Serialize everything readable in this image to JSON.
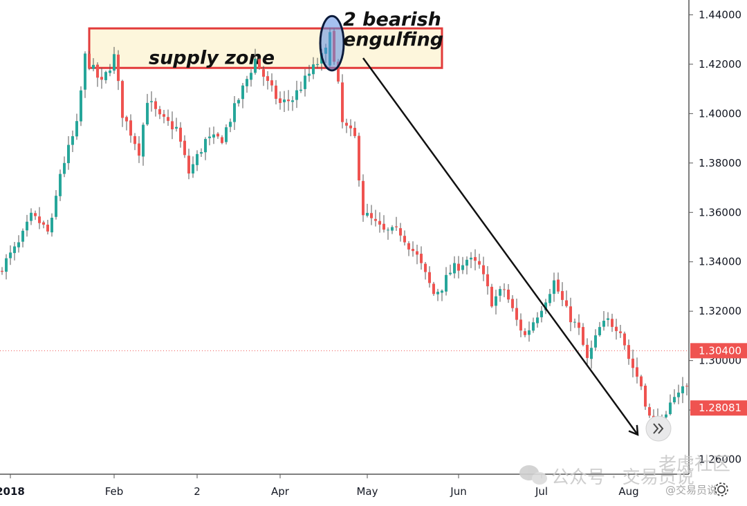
{
  "chart_data": {
    "type": "candlestick",
    "title": "",
    "y_axis": {
      "ylim": [
        1.254,
        1.446
      ],
      "ticks": [
        "1.44000",
        "1.42000",
        "1.40000",
        "1.38000",
        "1.36000",
        "1.34000",
        "1.32000",
        "1.30000",
        "1.28000",
        "1.26000"
      ],
      "tick_values": [
        1.44,
        1.42,
        1.4,
        1.38,
        1.36,
        1.34,
        1.32,
        1.3,
        1.28,
        1.26
      ],
      "position": "right",
      "price_badges": [
        {
          "label": "1.30400",
          "value": 1.304,
          "color": "#ef5350"
        },
        {
          "label": "1.28081",
          "value": 1.28081,
          "color": "#ef5350"
        }
      ]
    },
    "x_axis": {
      "labels": [
        {
          "text": "2018",
          "index": 2,
          "bold": true
        },
        {
          "text": "Feb",
          "index": 27
        },
        {
          "text": "2",
          "index": 47
        },
        {
          "text": "Apr",
          "index": 67
        },
        {
          "text": "May",
          "index": 88
        },
        {
          "text": "Jun",
          "index": 110
        },
        {
          "text": "Jul",
          "index": 130
        },
        {
          "text": "Aug",
          "index": 151
        }
      ],
      "count": 166
    },
    "colors": {
      "up": "#26a69a",
      "down": "#ef5350",
      "wick": "#555555"
    },
    "horizontal_line": {
      "value": 1.304,
      "style": "dotted",
      "color": "#ef5350"
    },
    "annotations": [
      {
        "text": "supply zone",
        "kind": "zone",
        "low": 1.4185,
        "high": 1.4345,
        "from_index": 21,
        "to_index": 106
      },
      {
        "text": "2 bearish",
        "kind": "label"
      },
      {
        "text": "engulfing",
        "kind": "label"
      },
      {
        "kind": "ellipse",
        "index": 79,
        "low": 1.4175,
        "high": 1.4395
      },
      {
        "kind": "arrow",
        "from_index": 87,
        "from_value": 1.4225,
        "to_index": 153,
        "to_value": 1.27
      }
    ],
    "ohlc_daily_count": 166
  },
  "watermark": {
    "line1": "公众号 · 交易员说",
    "line2": "老虎社区",
    "line3": "@交易员说"
  },
  "controls": {
    "scroll_icon": "double-chevron-right-icon",
    "settings_icon": "gear-icon"
  }
}
